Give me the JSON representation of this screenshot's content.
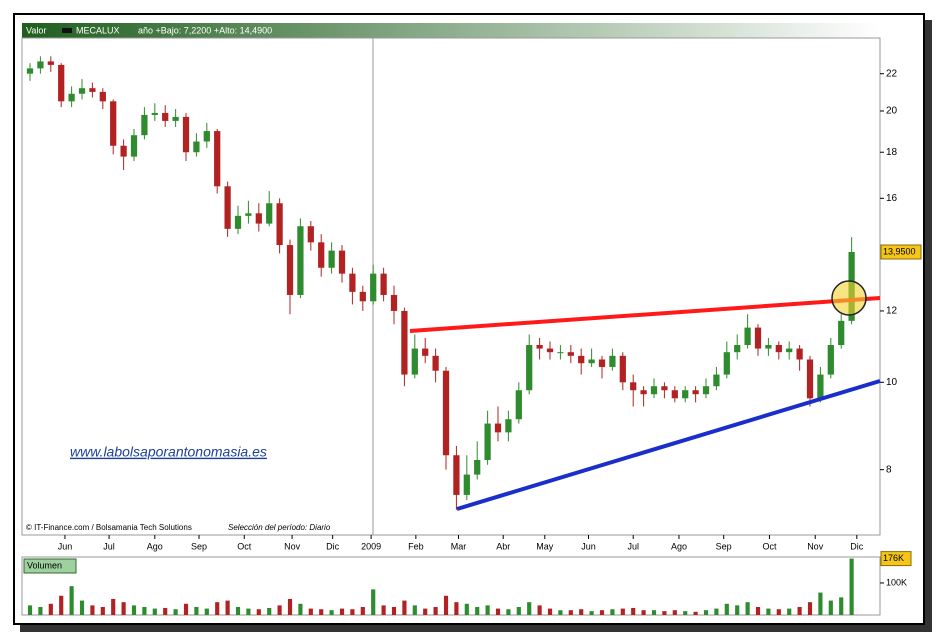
{
  "header": {
    "label": "Valor",
    "symbol": "MECALUX",
    "range": "año +Bajo: 7,2200 +Alto: 14,4900"
  },
  "watermark": "www.labolsaporantonomasia.es",
  "footer": {
    "credit": "© IT-Finance.com / Bolsamania Tech Solutions",
    "period": "Selección del período: Diario"
  },
  "chart_data": [
    {
      "type": "candlestick",
      "log_scale": true,
      "up_color": "#2e8b2e",
      "down_color": "#b22222",
      "open": [
        22.0,
        22.3,
        22.7,
        22.5,
        20.5,
        20.9,
        21.2,
        21.0,
        20.5,
        18.3,
        17.8,
        18.8,
        19.8,
        19.9,
        19.5,
        19.7,
        18.0,
        18.5,
        19.0,
        16.5,
        14.8,
        15.3,
        15.4,
        15.0,
        15.8,
        14.2,
        12.5,
        14.9,
        14.3,
        13.4,
        14.0,
        13.2,
        12.6,
        12.3,
        13.2,
        12.5,
        12.0,
        10.2,
        10.9,
        10.7,
        10.3,
        8.3,
        7.5,
        7.9,
        8.2,
        9.0,
        8.8,
        9.1,
        9.8,
        11.0,
        10.9,
        10.8,
        10.8,
        10.7,
        10.5,
        10.6,
        10.4,
        10.7,
        10.0,
        9.8,
        9.7,
        9.9,
        9.8,
        9.6,
        9.8,
        9.7,
        9.9,
        10.2,
        10.8,
        11.0,
        11.5,
        10.9,
        11.0,
        10.8,
        10.9,
        10.6,
        9.6,
        10.2,
        11.0,
        11.7
      ],
      "high": [
        22.6,
        23.0,
        23.0,
        22.6,
        21.3,
        21.7,
        21.5,
        21.2,
        20.6,
        18.6,
        19.1,
        20.2,
        20.4,
        20.3,
        20.1,
        19.9,
        18.9,
        19.4,
        19.1,
        16.7,
        15.7,
        15.9,
        15.8,
        16.3,
        16.0,
        14.4,
        15.2,
        15.1,
        14.6,
        14.3,
        14.2,
        13.4,
        12.8,
        13.5,
        13.4,
        12.8,
        12.1,
        11.3,
        11.2,
        10.9,
        10.4,
        8.5,
        8.3,
        8.6,
        9.3,
        9.4,
        9.3,
        10.0,
        11.3,
        11.2,
        11.1,
        11.0,
        11.0,
        10.9,
        10.9,
        10.7,
        10.9,
        10.8,
        10.2,
        9.9,
        10.1,
        10.0,
        9.9,
        9.9,
        9.9,
        10.1,
        10.4,
        11.1,
        11.3,
        11.9,
        11.6,
        11.2,
        11.1,
        11.1,
        11.0,
        10.7,
        10.4,
        11.2,
        11.9,
        14.49
      ],
      "low": [
        21.6,
        22.0,
        22.1,
        20.2,
        20.2,
        20.6,
        20.7,
        20.1,
        17.9,
        17.2,
        17.6,
        18.6,
        19.5,
        19.2,
        19.2,
        17.6,
        17.8,
        18.2,
        16.2,
        14.5,
        14.6,
        15.0,
        14.7,
        14.9,
        13.9,
        11.9,
        12.4,
        14.0,
        13.1,
        13.2,
        12.9,
        12.2,
        12.0,
        12.2,
        12.3,
        11.6,
        9.9,
        10.1,
        10.5,
        10.0,
        8.0,
        7.22,
        7.4,
        7.8,
        8.1,
        8.6,
        8.6,
        9.0,
        9.7,
        10.6,
        10.6,
        10.6,
        10.5,
        10.2,
        10.4,
        10.1,
        10.3,
        9.8,
        9.4,
        9.4,
        9.6,
        9.6,
        9.5,
        9.5,
        9.5,
        9.6,
        9.8,
        10.1,
        10.6,
        10.9,
        10.7,
        10.7,
        10.6,
        10.6,
        10.3,
        9.4,
        9.5,
        10.1,
        10.9,
        11.6
      ],
      "close": [
        22.3,
        22.7,
        22.5,
        20.5,
        20.9,
        21.2,
        21.0,
        20.5,
        18.3,
        17.8,
        18.8,
        19.8,
        19.9,
        19.5,
        19.7,
        18.0,
        18.5,
        19.0,
        16.5,
        14.8,
        15.3,
        15.4,
        15.0,
        15.8,
        14.2,
        12.5,
        14.9,
        14.3,
        13.4,
        14.0,
        13.2,
        12.6,
        12.3,
        13.2,
        12.5,
        12.0,
        10.2,
        10.9,
        10.7,
        10.3,
        8.3,
        7.5,
        7.9,
        8.2,
        9.0,
        8.8,
        9.1,
        9.8,
        11.0,
        10.9,
        10.8,
        10.8,
        10.7,
        10.5,
        10.6,
        10.4,
        10.7,
        10.0,
        9.8,
        9.7,
        9.9,
        9.8,
        9.6,
        9.8,
        9.7,
        9.9,
        10.2,
        10.8,
        11.0,
        11.5,
        10.9,
        11.0,
        10.8,
        10.9,
        10.6,
        9.6,
        10.2,
        11.0,
        11.7,
        13.95
      ],
      "value_labels": [
        null,
        null,
        null,
        null,
        null,
        null,
        null,
        null,
        null,
        null,
        null,
        null,
        null,
        null,
        null,
        null,
        null,
        null,
        null,
        null,
        null,
        null,
        null,
        null,
        null,
        null,
        null,
        null,
        null,
        null,
        null,
        null,
        null,
        null,
        null,
        null,
        null,
        null,
        null,
        null,
        null,
        null,
        null,
        null,
        null,
        null,
        null,
        null,
        null,
        null,
        null,
        null,
        null,
        null,
        null,
        null,
        null,
        null,
        null,
        null,
        null,
        null,
        null,
        null,
        null,
        null,
        null,
        null,
        null,
        null,
        null,
        null,
        null,
        null,
        null,
        null,
        null,
        null,
        null,
        "13,9500"
      ],
      "xlim": [
        -0.77,
        81.73
      ],
      "xticks": [
        {
          "value": 3.36,
          "label": "Jun"
        },
        {
          "value": 7.6,
          "label": "Jul"
        },
        {
          "value": 12.0,
          "label": "Ago"
        },
        {
          "value": 16.25,
          "label": "Sep"
        },
        {
          "value": 20.6,
          "label": "Oct"
        },
        {
          "value": 25.2,
          "label": "Nov"
        },
        {
          "value": 29.1,
          "label": "Dic"
        },
        {
          "value": 32.8,
          "label": "2009"
        },
        {
          "value": 37.1,
          "label": "Feb"
        },
        {
          "value": 41.2,
          "label": "Mar"
        },
        {
          "value": 45.5,
          "label": "Abr"
        },
        {
          "value": 49.5,
          "label": "May"
        },
        {
          "value": 53.7,
          "label": "Jun"
        },
        {
          "value": 58.0,
          "label": "Jul"
        },
        {
          "value": 62.4,
          "label": "Ago"
        },
        {
          "value": 66.7,
          "label": "Sep"
        },
        {
          "value": 71.1,
          "label": "Oct"
        },
        {
          "value": 75.5,
          "label": "Nov"
        },
        {
          "value": 79.5,
          "label": "Dic"
        }
      ],
      "ylim": [
        6.77,
        24.1
      ],
      "yticks": [
        8,
        10,
        12,
        16,
        18,
        20,
        22
      ]
    },
    {
      "type": "volume",
      "title": "Volumen",
      "values": [
        30000,
        25000,
        35000,
        60000,
        90000,
        45000,
        30000,
        25000,
        50000,
        40000,
        30000,
        25000,
        20000,
        22000,
        18000,
        35000,
        25000,
        20000,
        40000,
        45000,
        25000,
        20000,
        18000,
        22000,
        30000,
        50000,
        35000,
        20000,
        18000,
        15000,
        20000,
        18000,
        25000,
        80000,
        30000,
        25000,
        45000,
        30000,
        20000,
        25000,
        60000,
        40000,
        35000,
        25000,
        30000,
        20000,
        18000,
        25000,
        40000,
        30000,
        20000,
        15000,
        15000,
        18000,
        12000,
        15000,
        18000,
        20000,
        22000,
        15000,
        15000,
        12000,
        15000,
        12000,
        10000,
        15000,
        20000,
        35000,
        30000,
        40000,
        25000,
        20000,
        18000,
        20000,
        25000,
        40000,
        70000,
        45000,
        55000,
        176000
      ],
      "value_labels": [
        null,
        null,
        null,
        null,
        null,
        null,
        null,
        null,
        null,
        null,
        null,
        null,
        null,
        null,
        null,
        null,
        null,
        null,
        null,
        null,
        null,
        null,
        null,
        null,
        null,
        null,
        null,
        null,
        null,
        null,
        null,
        null,
        null,
        null,
        null,
        null,
        null,
        null,
        null,
        null,
        null,
        null,
        null,
        null,
        null,
        null,
        null,
        null,
        null,
        null,
        null,
        null,
        null,
        null,
        null,
        null,
        null,
        null,
        null,
        null,
        null,
        null,
        null,
        null,
        null,
        null,
        null,
        null,
        null,
        null,
        null,
        null,
        null,
        null,
        null,
        null,
        null,
        null,
        null,
        "176K"
      ],
      "ylim": [
        0,
        181000
      ],
      "yticks": [
        {
          "value": 100000,
          "label": "100K"
        }
      ]
    }
  ]
}
